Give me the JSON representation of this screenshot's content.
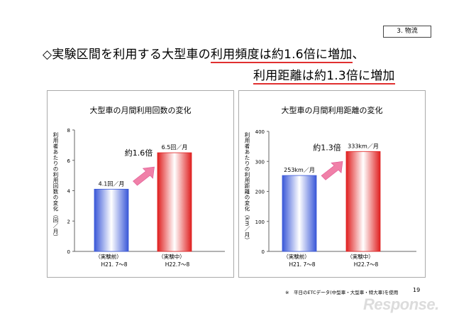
{
  "section_tag": "3. 物流",
  "headline": {
    "prefix": "◇実験区間を利用する大型車の",
    "highlight1": "利用頻度は約1.6倍に増加",
    "suffix1": "、",
    "highlight2": "利用距離は約1.3倍に増加"
  },
  "chart_data": [
    {
      "type": "bar",
      "title": "大型車の月間利用回数の変化",
      "ylabel": "利用者あたりの利用回数の変化（回／月）",
      "ylim": [
        0,
        8
      ],
      "yticks": [
        "0",
        "2",
        "4",
        "6",
        "8"
      ],
      "categories": [
        [
          "（実験前）",
          "H21. 7〜8"
        ],
        [
          "（実験中）",
          "H22.7〜8"
        ]
      ],
      "values": [
        4.1,
        6.5
      ],
      "data_labels": [
        "4.1回／月",
        "6.5回／月"
      ],
      "colors": [
        "#3a58d8",
        "#e02020"
      ],
      "increase_label": "約1.6倍",
      "arrow_color": "#f080a8"
    },
    {
      "type": "bar",
      "title": "大型車の月間利用距離の変化",
      "ylabel": "利用者あたりの利用距離の変化（km／月）",
      "ylim": [
        0,
        400
      ],
      "yticks": [
        "0",
        "100",
        "200",
        "300",
        "400"
      ],
      "categories": [
        [
          "（実験前）",
          "H21. 7〜8"
        ],
        [
          "（実験中）",
          "H22.7〜8"
        ]
      ],
      "values": [
        253,
        333
      ],
      "data_labels": [
        "253km／月",
        "333km／月"
      ],
      "colors": [
        "#3a58d8",
        "#e02020"
      ],
      "increase_label": "約1.3倍",
      "arrow_color": "#f080a8"
    }
  ],
  "footnote": "※　平日のETCデータ(中型車・大型車・特大車)を使用",
  "page_number": "19",
  "watermark": "Response."
}
